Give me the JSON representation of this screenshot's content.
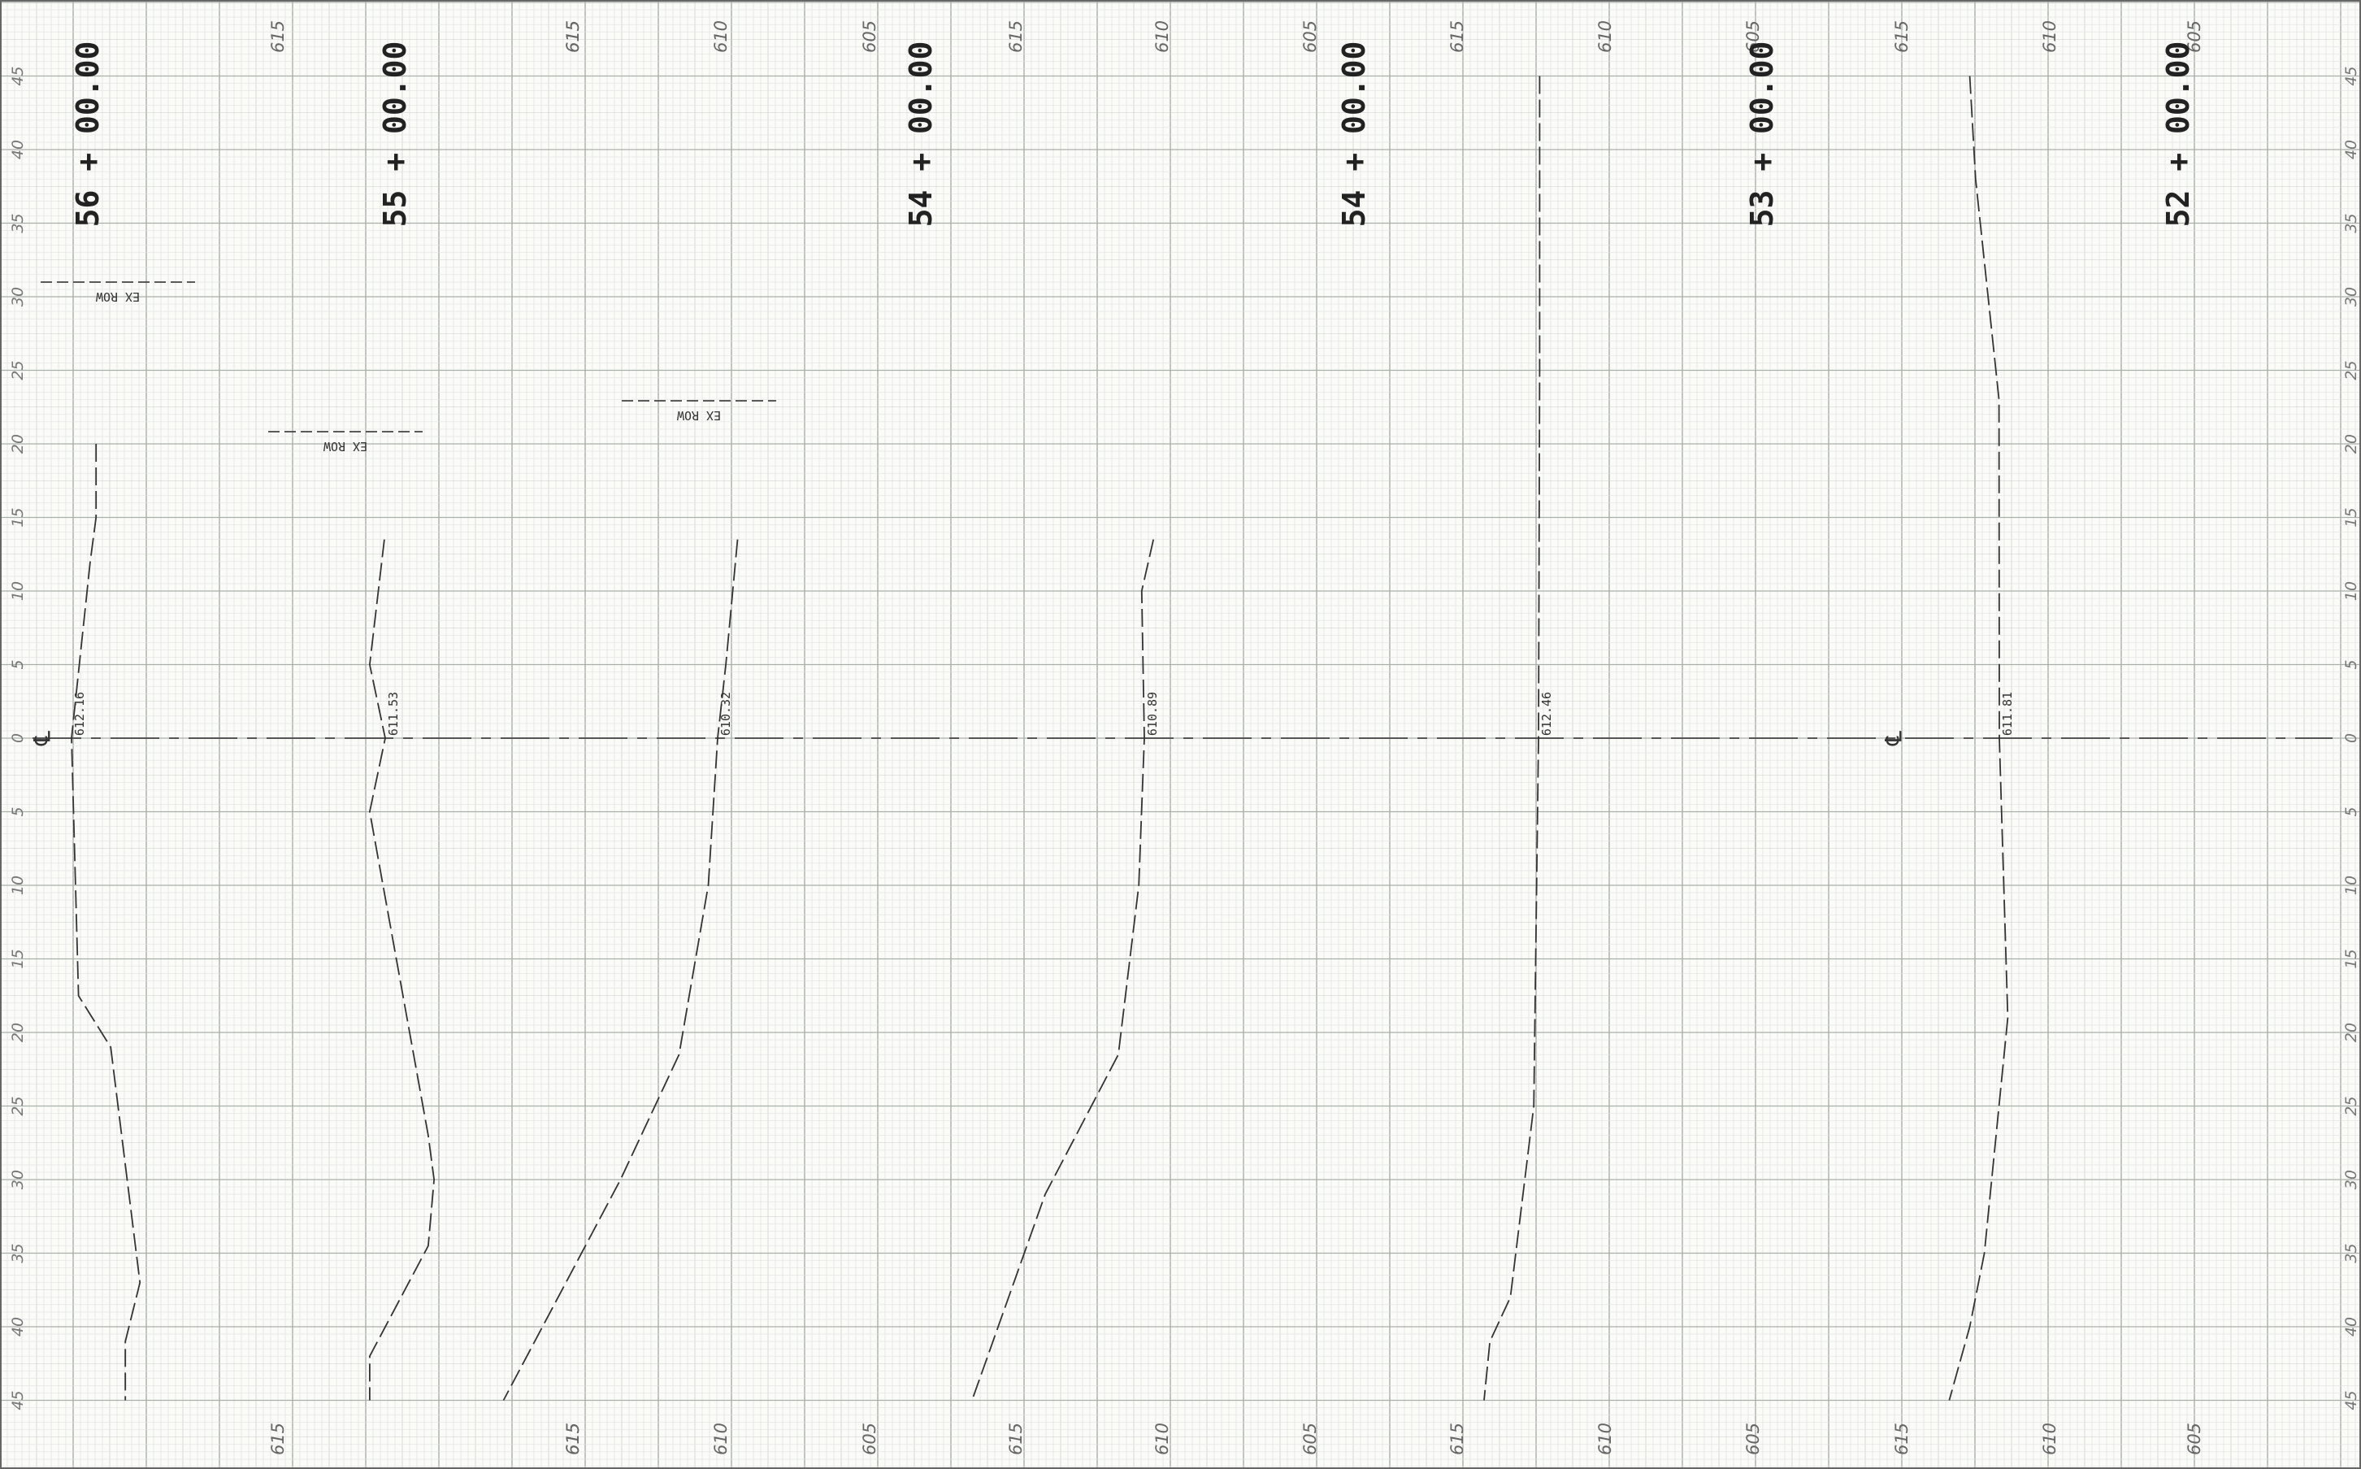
{
  "colors": {
    "paper": "#fbfbf8",
    "grid_fine": "#dfe3df",
    "grid_mid": "#c8cdc8",
    "grid_major": "#a9b0a9",
    "ink": "#333333"
  },
  "offset_labels": [
    "45",
    "40",
    "35",
    "30",
    "25",
    "20",
    "15",
    "10",
    "5",
    "0",
    "5",
    "10",
    "15",
    "20",
    "25",
    "30",
    "35",
    "40",
    "45"
  ],
  "centerline_symbol": "℄",
  "sections": [
    {
      "station": "56 + 00.00",
      "cl_elev": "612.16",
      "elev_top": [
        null,
        "615"
      ],
      "elev_bottom": [
        null,
        "615"
      ],
      "ex_row": {
        "label": "EX ROW"
      },
      "profile": [
        [
          20,
          613.0
        ],
        [
          15,
          613.0
        ],
        [
          12,
          612.8
        ],
        [
          0,
          612.16
        ],
        [
          -17.5,
          612.4
        ],
        [
          -21,
          613.5
        ],
        [
          -37,
          614.5
        ],
        [
          -41,
          614.0
        ],
        [
          -45,
          614.0
        ]
      ]
    },
    {
      "station": "55 + 00.00",
      "cl_elev": "611.53",
      "elev_top": [
        null,
        "615"
      ],
      "elev_bottom": [
        null,
        "615"
      ],
      "ex_row": {
        "label": "EX ROW"
      },
      "profile": [
        [
          13.5,
          611.5
        ],
        [
          5,
          611.0
        ],
        [
          0,
          611.53
        ],
        [
          -5,
          611.0
        ],
        [
          -27,
          613.0
        ],
        [
          -30,
          613.2
        ],
        [
          -34.5,
          613.0
        ],
        [
          -42,
          611.0
        ],
        [
          -45,
          611.0
        ]
      ]
    },
    {
      "station": "54 + 00.00",
      "cl_elev": "610.32",
      "elev_top": [
        "615",
        "610",
        "605"
      ],
      "elev_bottom": [
        "615",
        "610",
        "605"
      ],
      "ex_row": {
        "label": "EX ROW"
      },
      "profile": [
        [
          13.5,
          611.0
        ],
        [
          5,
          610.6
        ],
        [
          0,
          610.32
        ],
        [
          -10,
          610.0
        ],
        [
          -21.5,
          609.0
        ],
        [
          -30,
          607.0
        ],
        [
          -45,
          603.0
        ]
      ]
    },
    {
      "station": "54 + 00.00",
      "cl_elev": "610.89",
      "elev_top": [
        "615",
        "610",
        "605"
      ],
      "elev_bottom": [
        "615",
        "610",
        "605"
      ],
      "profile": [
        [
          13.5,
          611.2
        ],
        [
          10,
          610.8
        ],
        [
          0,
          610.89
        ],
        [
          -10,
          610.7
        ],
        [
          -21.5,
          610.0
        ],
        [
          -31,
          607.5
        ],
        [
          -45,
          605.0
        ]
      ]
    },
    {
      "station": "53 + 00.00",
      "cl_elev": "612.46",
      "elev_top": [
        "615",
        "610",
        "605"
      ],
      "elev_bottom": [
        "615",
        "610",
        "605"
      ],
      "profile": [
        [
          45,
          612.5
        ],
        [
          25,
          612.5
        ],
        [
          0,
          612.46
        ],
        [
          -25,
          612.3
        ],
        [
          -38,
          611.5
        ],
        [
          -41,
          610.8
        ],
        [
          -45,
          610.6
        ]
      ]
    },
    {
      "station": "52 + 00.00",
      "cl_elev": "611.81",
      "elev_top": [
        "615",
        "610",
        "605"
      ],
      "elev_bottom": [
        "615",
        "610",
        "605"
      ],
      "profile": [
        [
          45,
          610.8
        ],
        [
          38,
          611.0
        ],
        [
          23,
          611.8
        ],
        [
          0,
          611.81
        ],
        [
          -19,
          612.1
        ],
        [
          -35,
          611.3
        ],
        [
          -40,
          610.8
        ],
        [
          -45,
          610.1
        ]
      ]
    }
  ]
}
